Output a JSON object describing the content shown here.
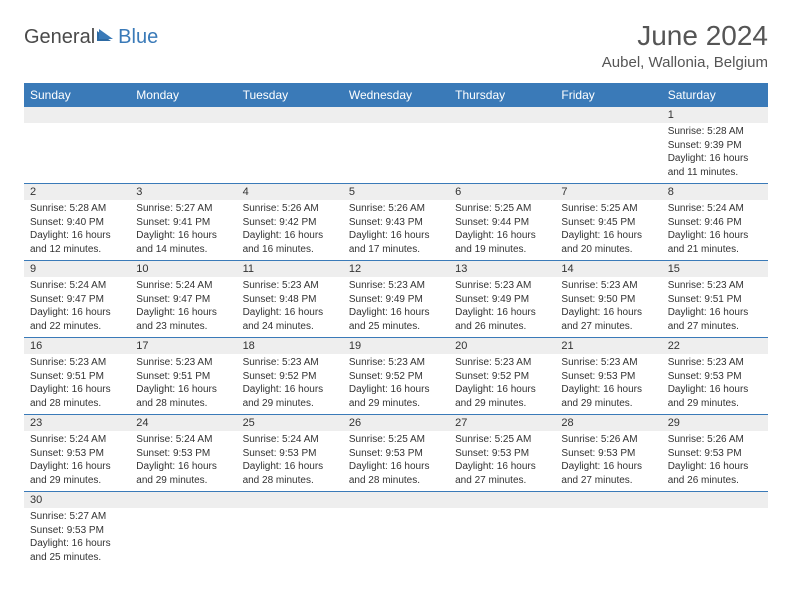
{
  "logo": {
    "text_general": "General",
    "text_blue": "Blue"
  },
  "title": "June 2024",
  "location": "Aubel, Wallonia, Belgium",
  "colors": {
    "header_bg": "#3a7ab8",
    "header_text": "#ffffff",
    "daynum_bg": "#eeeeee",
    "row_border": "#3a7ab8",
    "body_text": "#333333",
    "logo_gray": "#4a4a4a",
    "logo_blue": "#3a7ab8"
  },
  "daysOfWeek": [
    "Sunday",
    "Monday",
    "Tuesday",
    "Wednesday",
    "Thursday",
    "Friday",
    "Saturday"
  ],
  "weeks": [
    [
      null,
      null,
      null,
      null,
      null,
      null,
      {
        "n": "1",
        "sr": "Sunrise: 5:28 AM",
        "ss": "Sunset: 9:39 PM",
        "d1": "Daylight: 16 hours",
        "d2": "and 11 minutes."
      }
    ],
    [
      {
        "n": "2",
        "sr": "Sunrise: 5:28 AM",
        "ss": "Sunset: 9:40 PM",
        "d1": "Daylight: 16 hours",
        "d2": "and 12 minutes."
      },
      {
        "n": "3",
        "sr": "Sunrise: 5:27 AM",
        "ss": "Sunset: 9:41 PM",
        "d1": "Daylight: 16 hours",
        "d2": "and 14 minutes."
      },
      {
        "n": "4",
        "sr": "Sunrise: 5:26 AM",
        "ss": "Sunset: 9:42 PM",
        "d1": "Daylight: 16 hours",
        "d2": "and 16 minutes."
      },
      {
        "n": "5",
        "sr": "Sunrise: 5:26 AM",
        "ss": "Sunset: 9:43 PM",
        "d1": "Daylight: 16 hours",
        "d2": "and 17 minutes."
      },
      {
        "n": "6",
        "sr": "Sunrise: 5:25 AM",
        "ss": "Sunset: 9:44 PM",
        "d1": "Daylight: 16 hours",
        "d2": "and 19 minutes."
      },
      {
        "n": "7",
        "sr": "Sunrise: 5:25 AM",
        "ss": "Sunset: 9:45 PM",
        "d1": "Daylight: 16 hours",
        "d2": "and 20 minutes."
      },
      {
        "n": "8",
        "sr": "Sunrise: 5:24 AM",
        "ss": "Sunset: 9:46 PM",
        "d1": "Daylight: 16 hours",
        "d2": "and 21 minutes."
      }
    ],
    [
      {
        "n": "9",
        "sr": "Sunrise: 5:24 AM",
        "ss": "Sunset: 9:47 PM",
        "d1": "Daylight: 16 hours",
        "d2": "and 22 minutes."
      },
      {
        "n": "10",
        "sr": "Sunrise: 5:24 AM",
        "ss": "Sunset: 9:47 PM",
        "d1": "Daylight: 16 hours",
        "d2": "and 23 minutes."
      },
      {
        "n": "11",
        "sr": "Sunrise: 5:23 AM",
        "ss": "Sunset: 9:48 PM",
        "d1": "Daylight: 16 hours",
        "d2": "and 24 minutes."
      },
      {
        "n": "12",
        "sr": "Sunrise: 5:23 AM",
        "ss": "Sunset: 9:49 PM",
        "d1": "Daylight: 16 hours",
        "d2": "and 25 minutes."
      },
      {
        "n": "13",
        "sr": "Sunrise: 5:23 AM",
        "ss": "Sunset: 9:49 PM",
        "d1": "Daylight: 16 hours",
        "d2": "and 26 minutes."
      },
      {
        "n": "14",
        "sr": "Sunrise: 5:23 AM",
        "ss": "Sunset: 9:50 PM",
        "d1": "Daylight: 16 hours",
        "d2": "and 27 minutes."
      },
      {
        "n": "15",
        "sr": "Sunrise: 5:23 AM",
        "ss": "Sunset: 9:51 PM",
        "d1": "Daylight: 16 hours",
        "d2": "and 27 minutes."
      }
    ],
    [
      {
        "n": "16",
        "sr": "Sunrise: 5:23 AM",
        "ss": "Sunset: 9:51 PM",
        "d1": "Daylight: 16 hours",
        "d2": "and 28 minutes."
      },
      {
        "n": "17",
        "sr": "Sunrise: 5:23 AM",
        "ss": "Sunset: 9:51 PM",
        "d1": "Daylight: 16 hours",
        "d2": "and 28 minutes."
      },
      {
        "n": "18",
        "sr": "Sunrise: 5:23 AM",
        "ss": "Sunset: 9:52 PM",
        "d1": "Daylight: 16 hours",
        "d2": "and 29 minutes."
      },
      {
        "n": "19",
        "sr": "Sunrise: 5:23 AM",
        "ss": "Sunset: 9:52 PM",
        "d1": "Daylight: 16 hours",
        "d2": "and 29 minutes."
      },
      {
        "n": "20",
        "sr": "Sunrise: 5:23 AM",
        "ss": "Sunset: 9:52 PM",
        "d1": "Daylight: 16 hours",
        "d2": "and 29 minutes."
      },
      {
        "n": "21",
        "sr": "Sunrise: 5:23 AM",
        "ss": "Sunset: 9:53 PM",
        "d1": "Daylight: 16 hours",
        "d2": "and 29 minutes."
      },
      {
        "n": "22",
        "sr": "Sunrise: 5:23 AM",
        "ss": "Sunset: 9:53 PM",
        "d1": "Daylight: 16 hours",
        "d2": "and 29 minutes."
      }
    ],
    [
      {
        "n": "23",
        "sr": "Sunrise: 5:24 AM",
        "ss": "Sunset: 9:53 PM",
        "d1": "Daylight: 16 hours",
        "d2": "and 29 minutes."
      },
      {
        "n": "24",
        "sr": "Sunrise: 5:24 AM",
        "ss": "Sunset: 9:53 PM",
        "d1": "Daylight: 16 hours",
        "d2": "and 29 minutes."
      },
      {
        "n": "25",
        "sr": "Sunrise: 5:24 AM",
        "ss": "Sunset: 9:53 PM",
        "d1": "Daylight: 16 hours",
        "d2": "and 28 minutes."
      },
      {
        "n": "26",
        "sr": "Sunrise: 5:25 AM",
        "ss": "Sunset: 9:53 PM",
        "d1": "Daylight: 16 hours",
        "d2": "and 28 minutes."
      },
      {
        "n": "27",
        "sr": "Sunrise: 5:25 AM",
        "ss": "Sunset: 9:53 PM",
        "d1": "Daylight: 16 hours",
        "d2": "and 27 minutes."
      },
      {
        "n": "28",
        "sr": "Sunrise: 5:26 AM",
        "ss": "Sunset: 9:53 PM",
        "d1": "Daylight: 16 hours",
        "d2": "and 27 minutes."
      },
      {
        "n": "29",
        "sr": "Sunrise: 5:26 AM",
        "ss": "Sunset: 9:53 PM",
        "d1": "Daylight: 16 hours",
        "d2": "and 26 minutes."
      }
    ],
    [
      {
        "n": "30",
        "sr": "Sunrise: 5:27 AM",
        "ss": "Sunset: 9:53 PM",
        "d1": "Daylight: 16 hours",
        "d2": "and 25 minutes."
      },
      null,
      null,
      null,
      null,
      null,
      null
    ]
  ]
}
